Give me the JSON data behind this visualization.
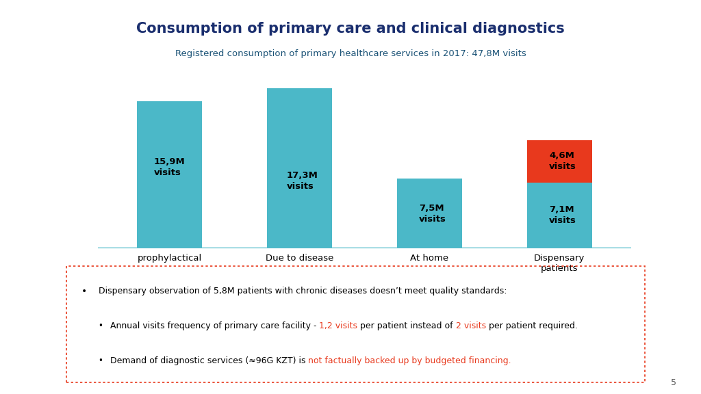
{
  "title": "Consumption of primary care and clinical diagnostics",
  "subtitle": "Registered consumption of primary healthcare services in 2017: 47,8M visits",
  "title_color": "#1a2e6e",
  "subtitle_color": "#1a5276",
  "categories": [
    "prophylactical",
    "Due to disease",
    "At home",
    "Dispensary\npatients"
  ],
  "bar_values": [
    15.9,
    17.3,
    7.5,
    7.1
  ],
  "bar_color": "#4bb8c8",
  "bar_labels": [
    "15,9M\nvisits",
    "17,3M\nvisits",
    "7,5M\nvisits",
    "7,1M\nvisits"
  ],
  "stacked_value": 4.6,
  "stacked_color": "#e8391d",
  "stacked_label": "4,6M\nvisits",
  "stacked_bar_index": 3,
  "ylim": [
    0,
    20
  ],
  "background_color": "#ffffff",
  "bar_width": 0.5,
  "bullet1": "Dispensary observation of 5,8M patients with chronic diseases doesn’t meet quality standards:",
  "bullet2_a": "Annual visits frequency of primary care facility - ",
  "bullet2_b": "1,2 visits",
  "bullet2_c": " per patient instead of ",
  "bullet2_d": "2 visits",
  "bullet2_e": " per patient required.",
  "bullet3_a": "Demand of diagnostic services (≈96G KZT) is ",
  "bullet3_b": "not factually backed up by budgeted financing.",
  "red_color": "#e8391d",
  "box_border_color": "#e8391d",
  "page_number": "5",
  "label_fontsize": 9.5,
  "axis_label_fontsize": 9.5
}
